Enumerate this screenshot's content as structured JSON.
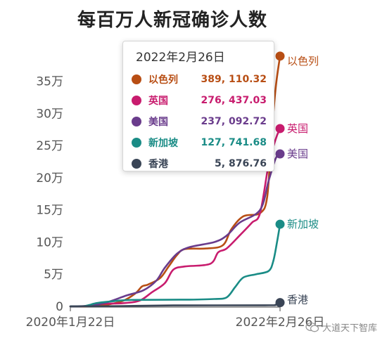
{
  "chart_data": {
    "type": "line",
    "title": "每百万人新冠确诊人数",
    "x_tick_labels": [
      "2020年1月22日",
      "2022年2月26日"
    ],
    "y_ticks": [
      0,
      50000,
      100000,
      150000,
      200000,
      250000,
      300000,
      350000
    ],
    "y_tick_labels": [
      "0",
      "5万",
      "10万",
      "15万",
      "20万",
      "25万",
      "30万",
      "35万"
    ],
    "ylim": [
      0,
      390000
    ],
    "xlim": [
      "2020-01-22",
      "2022-02-26"
    ],
    "grid": false,
    "series": [
      {
        "name": "以色列",
        "color": "#b84e14",
        "points": [
          [
            "2020-01-22",
            0
          ],
          [
            "2020-03-22",
            200
          ],
          [
            "2020-06-01",
            2500
          ],
          [
            "2020-08-01",
            8500
          ],
          [
            "2020-09-15",
            20000
          ],
          [
            "2020-10-10",
            31000
          ],
          [
            "2020-11-01",
            34000
          ],
          [
            "2020-12-15",
            44000
          ],
          [
            "2021-01-15",
            62000
          ],
          [
            "2021-02-15",
            80000
          ],
          [
            "2021-03-15",
            89000
          ],
          [
            "2021-06-01",
            90000
          ],
          [
            "2021-08-01",
            95000
          ],
          [
            "2021-09-01",
            120000
          ],
          [
            "2021-10-15",
            140000
          ],
          [
            "2021-12-15",
            145000
          ],
          [
            "2022-01-10",
            170000
          ],
          [
            "2022-01-25",
            260000
          ],
          [
            "2022-02-10",
            340000
          ],
          [
            "2022-02-26",
            389110.32
          ]
        ]
      },
      {
        "name": "英国",
        "color": "#c81c6e",
        "points": [
          [
            "2020-01-22",
            0
          ],
          [
            "2020-03-22",
            500
          ],
          [
            "2020-05-15",
            4000
          ],
          [
            "2020-08-01",
            5000
          ],
          [
            "2020-10-01",
            9000
          ],
          [
            "2020-11-15",
            22000
          ],
          [
            "2021-01-01",
            36000
          ],
          [
            "2021-02-01",
            57000
          ],
          [
            "2021-03-15",
            62000
          ],
          [
            "2021-06-15",
            66000
          ],
          [
            "2021-07-15",
            84000
          ],
          [
            "2021-08-15",
            90000
          ],
          [
            "2021-10-01",
            110000
          ],
          [
            "2021-11-15",
            130000
          ],
          [
            "2021-12-15",
            145000
          ],
          [
            "2022-01-15",
            220000
          ],
          [
            "2022-02-10",
            260000
          ],
          [
            "2022-02-26",
            276437.03
          ]
        ]
      },
      {
        "name": "美国",
        "color": "#6a3c8c",
        "points": [
          [
            "2020-01-22",
            0
          ],
          [
            "2020-04-01",
            1000
          ],
          [
            "2020-06-01",
            6000
          ],
          [
            "2020-08-15",
            17000
          ],
          [
            "2020-10-15",
            25000
          ],
          [
            "2020-12-01",
            40000
          ],
          [
            "2021-01-01",
            60000
          ],
          [
            "2021-02-15",
            82000
          ],
          [
            "2021-04-01",
            92000
          ],
          [
            "2021-07-01",
            100000
          ],
          [
            "2021-08-15",
            110000
          ],
          [
            "2021-10-01",
            130000
          ],
          [
            "2021-12-15",
            150000
          ],
          [
            "2022-01-15",
            195000
          ],
          [
            "2022-02-10",
            230000
          ],
          [
            "2022-02-26",
            237092.72
          ]
        ]
      },
      {
        "name": "新加坡",
        "color": "#1a8c86",
        "points": [
          [
            "2020-01-22",
            0
          ],
          [
            "2020-03-15",
            500
          ],
          [
            "2020-04-25",
            5000
          ],
          [
            "2020-06-15",
            7500
          ],
          [
            "2020-09-01",
            10000
          ],
          [
            "2021-04-01",
            10500
          ],
          [
            "2021-07-01",
            11500
          ],
          [
            "2021-08-15",
            14000
          ],
          [
            "2021-09-15",
            30000
          ],
          [
            "2021-10-15",
            45000
          ],
          [
            "2021-12-01",
            50000
          ],
          [
            "2022-01-15",
            55000
          ],
          [
            "2022-02-01",
            70000
          ],
          [
            "2022-02-15",
            100000
          ],
          [
            "2022-02-26",
            127741.68
          ]
        ]
      },
      {
        "name": "香港",
        "color": "#3a4556",
        "points": [
          [
            "2020-01-22",
            0
          ],
          [
            "2020-08-01",
            500
          ],
          [
            "2021-02-01",
            1500
          ],
          [
            "2022-01-01",
            1700
          ],
          [
            "2022-02-10",
            2500
          ],
          [
            "2022-02-26",
            5876.76
          ]
        ]
      }
    ],
    "tooltip": {
      "date": "2022年2月26日",
      "rows": [
        {
          "name": "以色列",
          "value": "389, 110.32",
          "color": "#b84e14"
        },
        {
          "name": "英国",
          "value": "276, 437.03",
          "color": "#c81c6e"
        },
        {
          "name": "美国",
          "value": "237, 092.72",
          "color": "#6a3c8c"
        },
        {
          "name": "新加坡",
          "value": "127, 741.68",
          "color": "#1a8c86"
        },
        {
          "name": "香港",
          "value": "5, 876.76",
          "color": "#3a4556"
        }
      ]
    }
  },
  "watermark": {
    "text": "大道天下智库",
    "icon": "wechat-icon"
  }
}
